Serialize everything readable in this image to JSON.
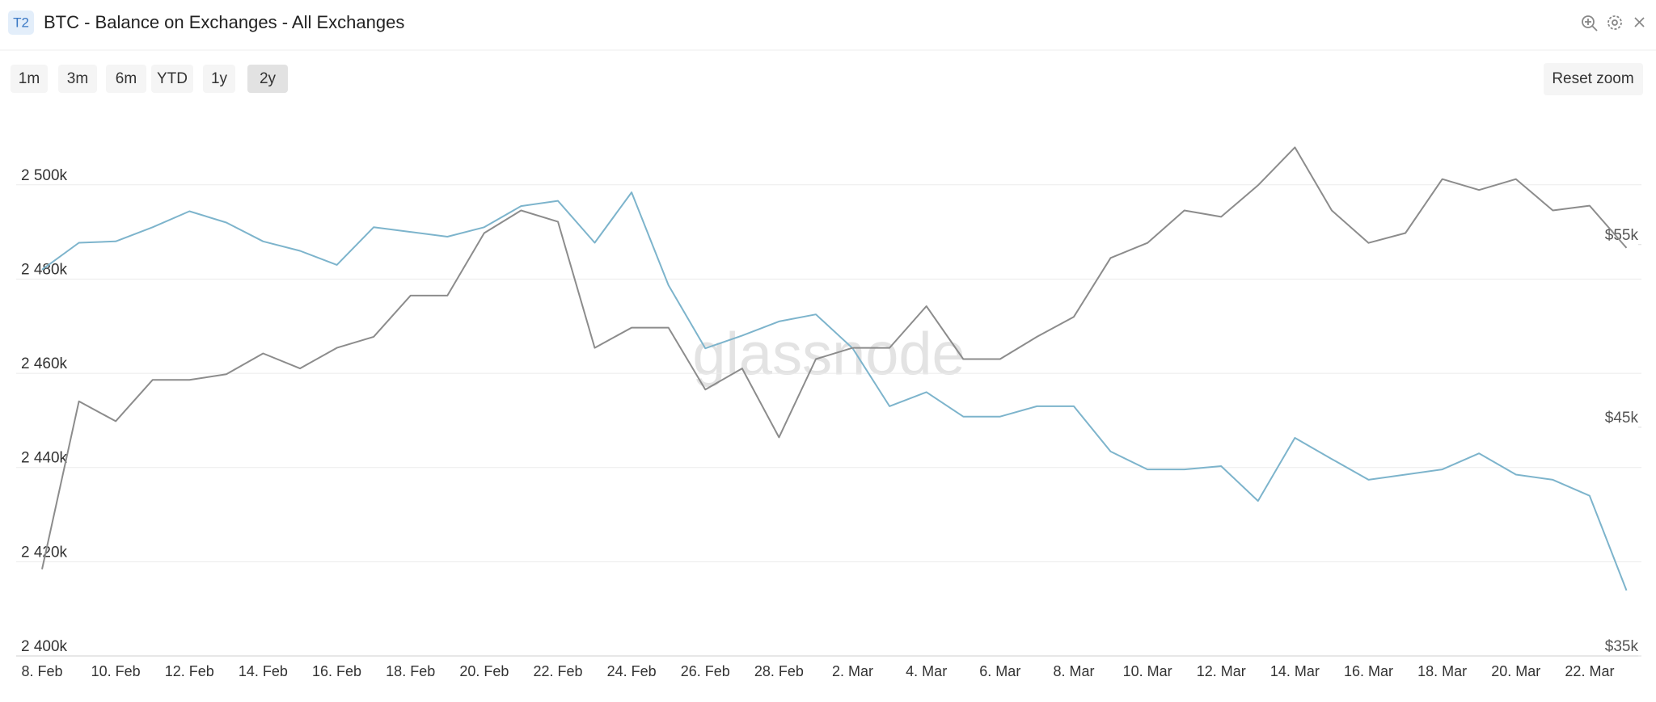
{
  "header": {
    "badge": "T2",
    "title": "BTC - Balance on Exchanges - All Exchanges"
  },
  "toolbar": {
    "ranges": [
      "1m",
      "3m",
      "6m",
      "YTD",
      "1y",
      "2y"
    ],
    "active_index": 5,
    "reset": "Reset zoom"
  },
  "chart_data": {
    "type": "line",
    "watermark": "glassnode",
    "categories": [
      "8. Feb",
      null,
      "10. Feb",
      null,
      "12. Feb",
      null,
      "14. Feb",
      null,
      "16. Feb",
      null,
      "18. Feb",
      null,
      "20. Feb",
      null,
      "22. Feb",
      null,
      "24. Feb",
      null,
      "26. Feb",
      null,
      "28. Feb",
      null,
      "2. Mar",
      null,
      "4. Mar",
      null,
      "6. Mar",
      null,
      "8. Mar",
      null,
      "10. Mar",
      null,
      "12. Mar",
      null,
      "14. Mar",
      null,
      "16. Mar",
      null,
      "18. Mar",
      null,
      "20. Mar",
      null,
      "22. Mar",
      null
    ],
    "series": [
      {
        "color": "#7db4cc",
        "axis": "y",
        "values": [
          2482000,
          2487700,
          2488000,
          2491000,
          2494400,
          2492000,
          2488000,
          2486000,
          2483000,
          2491000,
          2490000,
          2489000,
          2491000,
          2495500,
          2496600,
          2487700,
          2498400,
          2478700,
          2465300,
          2468000,
          2471000,
          2472500,
          2465300,
          2453000,
          2456000,
          2450800,
          2450800,
          2453000,
          2453000,
          2443400,
          2439600,
          2439600,
          2440300,
          2432900,
          2446300,
          2441800,
          2437400,
          2438500,
          2439600,
          2443000,
          2438500,
          2437400,
          2434000,
          2413900
        ]
      },
      {
        "color": "#8c8c8c",
        "axis": "y2",
        "values": [
          38500,
          46300,
          45300,
          47400,
          47400,
          47700,
          48800,
          48000,
          49100,
          49700,
          52000,
          52000,
          55700,
          57100,
          56400,
          49100,
          50200,
          50200,
          46900,
          48000,
          44500,
          48500,
          49100,
          49100,
          51400,
          48500,
          48500,
          49700,
          50800,
          54200,
          55100,
          57100,
          56700,
          58700,
          61200,
          57100,
          55100,
          55700,
          59100,
          58400,
          59100,
          57100,
          57400,
          54800
        ]
      }
    ],
    "ylim": [
      2400000,
      2519000
    ],
    "yticks": [
      {
        "value": 2400000,
        "label": "2 400k"
      },
      {
        "value": 2420000,
        "label": "2 420k"
      },
      {
        "value": 2440000,
        "label": "2 440k"
      },
      {
        "value": 2460000,
        "label": "2 460k"
      },
      {
        "value": 2480000,
        "label": "2 480k"
      },
      {
        "value": 2500000,
        "label": "2 500k"
      }
    ],
    "y2lim": [
      35000,
      64800
    ],
    "y2scale": "log",
    "y2ticks": [
      {
        "value": 35000,
        "label": "$35k"
      },
      {
        "value": 45000,
        "label": "$45k"
      },
      {
        "value": 55000,
        "label": "$55k"
      }
    ],
    "grid": true
  }
}
